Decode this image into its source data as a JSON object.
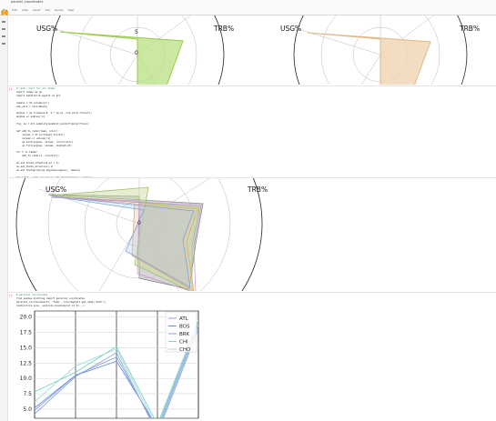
{
  "notebook": {
    "title_line": "parallel_coordinates",
    "menu": [
      "File",
      "Edit",
      "View",
      "Insert",
      "Cell",
      "Kernel",
      "Help"
    ]
  },
  "cells": {
    "radar_top": {
      "left_label_usg": "USG%",
      "left_label_trb": "TRB%",
      "right_label_usg": "USG%",
      "right_label_trb": "TRB%",
      "tick_5": "5",
      "tick_0": "0"
    },
    "code_block_1": {
      "lines": [
        "# radar chart for all teams",
        "import numpy as np",
        "import matplotlib.pyplot as plt",
        "",
        "labels = df.columns[1:]",
        "num_vars = len(labels)",
        "",
        "angles = np.linspace(0, 2 * np.pi, num_vars).tolist()",
        "angles += angles[:1]",
        "",
        "fig, ax = plt.subplots(subplot_kw=dict(polar=True))",
        "",
        "def add_to_radar(team, color):",
        "    values = df.loc[team].tolist()",
        "    values += values[:1]",
        "    ax.plot(angles, values, color=color)",
        "    ax.fill(angles, values, alpha=0.25)",
        "",
        "for t in teams:",
        "    add_to_radar(t, colors[t])",
        "",
        "ax.set_theta_offset(np.pi / 2)",
        "ax.set_theta_direction(-1)",
        "ax.set_thetagrids(np.degrees(angles), labels)",
        "",
        "for label, angle in zip(ax.get_xticklabels(), angles):",
        "    if angle in (0, np.pi):",
        "        label.set_horizontalalignment('center')",
        "",
        "ax.set_ylim(0, 20)",
        "ax.set_rlabel_position(180 / num_vars)",
        "",
        "ax.legend(loc='upper right')",
        "plt.show()"
      ]
    },
    "radar_mid": {
      "label_usg": "USG%",
      "label_trb": "TRB%",
      "tick_0": "0"
    },
    "code_block_2": {
      "lines": [
        "# parallel coordinates",
        "from pandas.plotting import parallel_coordinates",
        "parallel_coordinates(df, 'Team', colormap=plt.get_cmap('Set2'))"
      ],
      "out_label": "<matplotlib.axes._subplots.AxesSubplot at 0x...>"
    },
    "parallel": {
      "legend": [
        "ATL",
        "BOS",
        "BRK",
        "CHI",
        "CHO"
      ],
      "y_ticks": [
        "20.0",
        "17.5",
        "15.0",
        "12.5",
        "10.0",
        "7.5",
        "5.0"
      ]
    }
  },
  "chart_data": [
    {
      "type": "parallel",
      "y_ticks": [
        5.0,
        7.5,
        10.0,
        12.5,
        15.0,
        17.5,
        20.0
      ],
      "ylim": [
        3.5,
        21
      ],
      "legend_position": "upper-right",
      "series": [
        {
          "name": "ATL",
          "values": [
            4.8,
            10.5,
            13.5,
            1.5,
            18.5
          ]
        },
        {
          "name": "BOS",
          "values": [
            5.2,
            10.5,
            12.8,
            2.0,
            19.0
          ]
        },
        {
          "name": "BRK",
          "values": [
            4.2,
            10.3,
            14.2,
            1.0,
            18.0
          ]
        },
        {
          "name": "CHI",
          "values": [
            7.8,
            11.0,
            15.2,
            2.5,
            19.5
          ]
        },
        {
          "name": "CHO",
          "values": [
            6.2,
            12.0,
            14.8,
            1.8,
            18.8
          ]
        }
      ],
      "colors": [
        "#8c9fe6",
        "#6f8fd8",
        "#8ba8d6",
        "#7dd6b8",
        "#9fd6e0"
      ]
    }
  ]
}
